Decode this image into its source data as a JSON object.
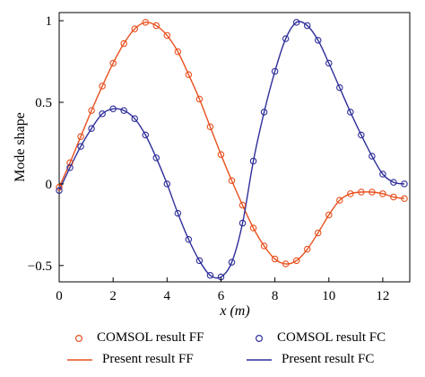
{
  "chart_data": {
    "type": "line",
    "xlabel": "x (m)",
    "ylabel": "Mode shape",
    "xlim": [
      0,
      13
    ],
    "ylim": [
      -0.6,
      1.05
    ],
    "xticks": [
      0,
      2,
      4,
      6,
      8,
      10,
      12
    ],
    "yticks": [
      -0.5,
      0,
      0.5,
      1
    ],
    "ytick_labels": [
      "−0.5",
      "0",
      "0.5",
      "1"
    ],
    "grid": false,
    "legend_position": "bottom",
    "colors": {
      "FF": "#e8501e",
      "FC": "#2e2e9a"
    },
    "series": [
      {
        "name": "COMSOL result FF",
        "style": "marker",
        "color": "#e8501e",
        "x": [
          0,
          0.4,
          0.8,
          1.2,
          1.6,
          2.0,
          2.4,
          2.8,
          3.2,
          3.6,
          4.0,
          4.4,
          4.8,
          5.2,
          5.6,
          6.0,
          6.4,
          6.8,
          7.2,
          7.6,
          8.0,
          8.4,
          8.8,
          9.2,
          9.6,
          10.0,
          10.4,
          10.8,
          11.2,
          11.6,
          12.0,
          12.4,
          12.8
        ],
        "values": [
          -0.02,
          0.13,
          0.29,
          0.45,
          0.6,
          0.74,
          0.86,
          0.95,
          0.99,
          0.97,
          0.91,
          0.81,
          0.67,
          0.52,
          0.35,
          0.18,
          0.02,
          -0.13,
          -0.27,
          -0.38,
          -0.46,
          -0.49,
          -0.47,
          -0.4,
          -0.3,
          -0.19,
          -0.1,
          -0.06,
          -0.05,
          -0.05,
          -0.06,
          -0.08,
          -0.09
        ]
      },
      {
        "name": "Present result FF",
        "style": "line",
        "color": "#e8501e",
        "x": [
          0,
          0.4,
          0.8,
          1.2,
          1.6,
          2.0,
          2.4,
          2.8,
          3.2,
          3.6,
          4.0,
          4.4,
          4.8,
          5.2,
          5.6,
          6.0,
          6.4,
          6.8,
          7.2,
          7.6,
          8.0,
          8.4,
          8.8,
          9.2,
          9.6,
          10.0,
          10.4,
          10.8,
          11.2,
          11.6,
          12.0,
          12.4,
          12.8
        ],
        "values": [
          -0.02,
          0.13,
          0.29,
          0.45,
          0.6,
          0.74,
          0.86,
          0.95,
          0.99,
          0.97,
          0.91,
          0.81,
          0.67,
          0.52,
          0.35,
          0.18,
          0.02,
          -0.13,
          -0.27,
          -0.38,
          -0.46,
          -0.49,
          -0.47,
          -0.4,
          -0.3,
          -0.19,
          -0.1,
          -0.06,
          -0.05,
          -0.05,
          -0.06,
          -0.08,
          -0.09
        ]
      },
      {
        "name": "COMSOL result FC",
        "style": "marker",
        "color": "#2e2e9a",
        "x": [
          0,
          0.4,
          0.8,
          1.2,
          1.6,
          2.0,
          2.4,
          2.8,
          3.2,
          3.6,
          4.0,
          4.4,
          4.8,
          5.2,
          5.6,
          6.0,
          6.4,
          6.8,
          7.2,
          7.6,
          8.0,
          8.4,
          8.8,
          9.2,
          9.6,
          10.0,
          10.4,
          10.8,
          11.2,
          11.6,
          12.0,
          12.4,
          12.8
        ],
        "values": [
          -0.04,
          0.1,
          0.23,
          0.34,
          0.43,
          0.46,
          0.45,
          0.4,
          0.3,
          0.16,
          0.0,
          -0.18,
          -0.34,
          -0.47,
          -0.56,
          -0.57,
          -0.48,
          -0.24,
          0.14,
          0.44,
          0.69,
          0.89,
          0.99,
          0.97,
          0.88,
          0.74,
          0.59,
          0.44,
          0.3,
          0.17,
          0.06,
          0.01,
          0.0
        ]
      },
      {
        "name": "Present result FC",
        "style": "line",
        "color": "#2e2e9a",
        "x": [
          0,
          0.4,
          0.8,
          1.2,
          1.6,
          2.0,
          2.4,
          2.8,
          3.2,
          3.6,
          4.0,
          4.4,
          4.8,
          5.2,
          5.6,
          6.0,
          6.4,
          6.8,
          7.2,
          7.6,
          8.0,
          8.4,
          8.8,
          9.2,
          9.6,
          10.0,
          10.4,
          10.8,
          11.2,
          11.6,
          12.0,
          12.4,
          12.8
        ],
        "values": [
          -0.04,
          0.1,
          0.23,
          0.34,
          0.43,
          0.46,
          0.45,
          0.4,
          0.3,
          0.16,
          0.0,
          -0.18,
          -0.34,
          -0.47,
          -0.56,
          -0.57,
          -0.48,
          -0.24,
          0.14,
          0.44,
          0.69,
          0.89,
          0.99,
          0.97,
          0.88,
          0.74,
          0.59,
          0.44,
          0.3,
          0.17,
          0.06,
          0.01,
          0.0
        ]
      }
    ]
  },
  "legend": {
    "comsol_ff": "COMSOL result FF",
    "present_ff": "Present result FF",
    "comsol_fc": "COMSOL result FC",
    "present_fc": "Present result FC"
  }
}
